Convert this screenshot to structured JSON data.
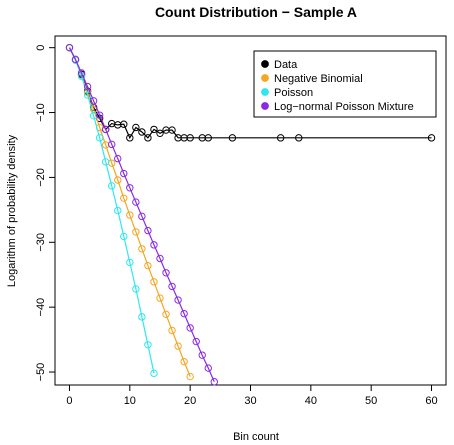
{
  "chart_data": {
    "type": "line",
    "title": "Count Distribution − Sample A",
    "xlabel": "Bin count",
    "ylabel": "Logarithm of probability density",
    "xlim": [
      0,
      60
    ],
    "ylim": [
      -52,
      0
    ],
    "x_ticks": [
      {
        "value": 0,
        "label": "0"
      },
      {
        "value": 10,
        "label": "10"
      },
      {
        "value": 20,
        "label": "20"
      },
      {
        "value": 30,
        "label": "30"
      },
      {
        "value": 40,
        "label": "40"
      },
      {
        "value": 50,
        "label": "50"
      },
      {
        "value": 60,
        "label": "60"
      }
    ],
    "y_ticks": [
      {
        "value": 0,
        "label": "0"
      },
      {
        "value": -10,
        "label": "−10"
      },
      {
        "value": -20,
        "label": "−20"
      },
      {
        "value": -30,
        "label": "−30"
      },
      {
        "value": -40,
        "label": "−40"
      },
      {
        "value": -50,
        "label": "−50"
      }
    ],
    "grid": false,
    "legend_position": "top-right",
    "series": [
      {
        "name": "Data",
        "color": "#000000",
        "x": [
          0,
          1,
          2,
          3,
          4,
          5,
          6,
          7,
          8,
          9,
          10,
          11,
          12,
          13,
          14,
          15,
          16,
          17,
          18,
          19,
          20,
          22,
          23,
          27,
          35,
          38,
          60
        ],
        "y": [
          0,
          -1.9,
          -4.1,
          -6.7,
          -9.2,
          -10.9,
          -12.6,
          -11.7,
          -11.9,
          -11.8,
          -13.9,
          -12.3,
          -13.0,
          -13.9,
          -12.6,
          -13.2,
          -12.7,
          -12.7,
          -13.9,
          -13.9,
          -13.9,
          -13.9,
          -13.9,
          -13.9,
          -13.9,
          -13.9,
          -13.9
        ]
      },
      {
        "name": "Negative Binomial",
        "color": "#f5a623",
        "x": [
          0,
          1,
          2,
          3,
          4,
          5,
          6,
          7,
          8,
          9,
          10,
          11,
          12,
          13,
          14,
          15,
          16,
          17,
          18,
          19,
          20
        ],
        "y": [
          0,
          -1.9,
          -4.3,
          -6.9,
          -9.5,
          -12.3,
          -15.0,
          -17.8,
          -20.4,
          -23.2,
          -25.8,
          -28.4,
          -31.0,
          -33.6,
          -36.1,
          -38.6,
          -41.1,
          -43.6,
          -46.0,
          -48.4,
          -50.7
        ]
      },
      {
        "name": "Poisson",
        "color": "#2ee8ee",
        "x": [
          0,
          1,
          2,
          3,
          4,
          5,
          6,
          7,
          8,
          9,
          10,
          11,
          12,
          13,
          14
        ],
        "y": [
          0,
          -1.9,
          -4.4,
          -7.3,
          -10.5,
          -13.9,
          -17.6,
          -21.3,
          -25.1,
          -29.1,
          -33.1,
          -37.2,
          -41.5,
          -45.8,
          -50.2
        ]
      },
      {
        "name": "Log−normal Poisson Mixture",
        "color": "#8a2be2",
        "x": [
          0,
          1,
          2,
          3,
          4,
          5,
          6,
          7,
          8,
          9,
          10,
          11,
          12,
          13,
          14,
          15,
          16,
          17,
          18,
          19,
          20,
          21,
          22,
          23,
          24
        ],
        "y": [
          0,
          -1.8,
          -3.9,
          -6.0,
          -8.2,
          -10.4,
          -12.6,
          -14.9,
          -17.1,
          -19.4,
          -21.6,
          -23.8,
          -26.0,
          -28.2,
          -30.4,
          -32.5,
          -34.7,
          -36.8,
          -38.9,
          -41.0,
          -43.2,
          -45.3,
          -47.4,
          -49.4,
          -51.5
        ]
      }
    ]
  }
}
